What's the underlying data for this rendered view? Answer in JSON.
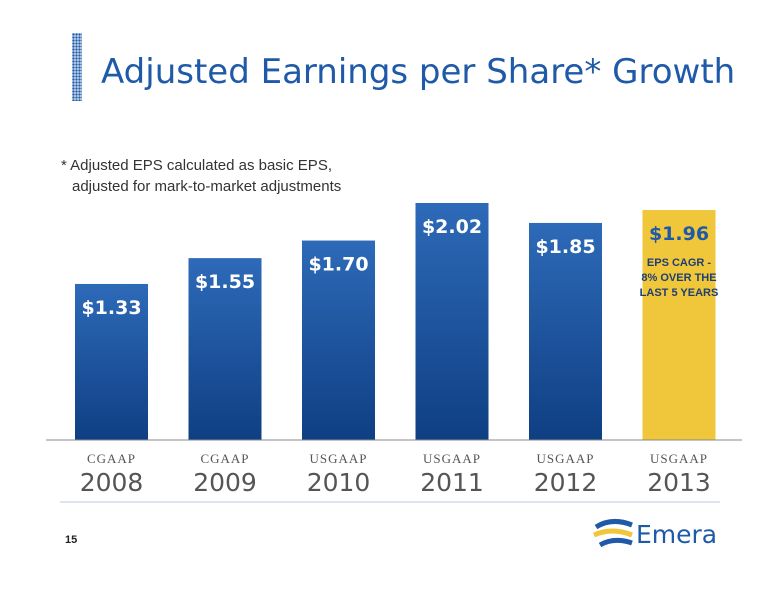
{
  "slide": {
    "title": "Adjusted Earnings per Share* Growth",
    "footnote_line1": "* Adjusted EPS calculated as basic EPS,",
    "footnote_line2": "adjusted for mark-to-market adjustments",
    "page_number": "15",
    "logo_text": "Emera"
  },
  "colors": {
    "title": "#1f5aa8",
    "bar_top": "#2d6ab8",
    "bar_bottom": "#0f3f83",
    "highlight_bar": "#f0c63a",
    "highlight_label": "#1f5aa8",
    "bar_label": "#ffffff"
  },
  "chart_data": {
    "type": "bar",
    "title": "Adjusted Earnings per Share* Growth",
    "categories": [
      "2008",
      "2009",
      "2010",
      "2011",
      "2012",
      "2013"
    ],
    "category_basis": [
      "CGAAP",
      "CGAAP",
      "USGAAP",
      "USGAAP",
      "USGAAP",
      "USGAAP"
    ],
    "values": [
      1.33,
      1.55,
      1.7,
      2.02,
      1.85,
      1.96
    ],
    "data_labels": [
      "$1.33",
      "$1.55",
      "$1.70",
      "$2.02",
      "$1.85",
      "$1.96"
    ],
    "highlight_index": 5,
    "annotation": [
      "EPS CAGR -",
      "8% OVER THE",
      "LAST 5 YEARS"
    ],
    "ylim": [
      0,
      2.02
    ],
    "grid": false,
    "legend": "none",
    "xlabel": "",
    "ylabel": ""
  }
}
